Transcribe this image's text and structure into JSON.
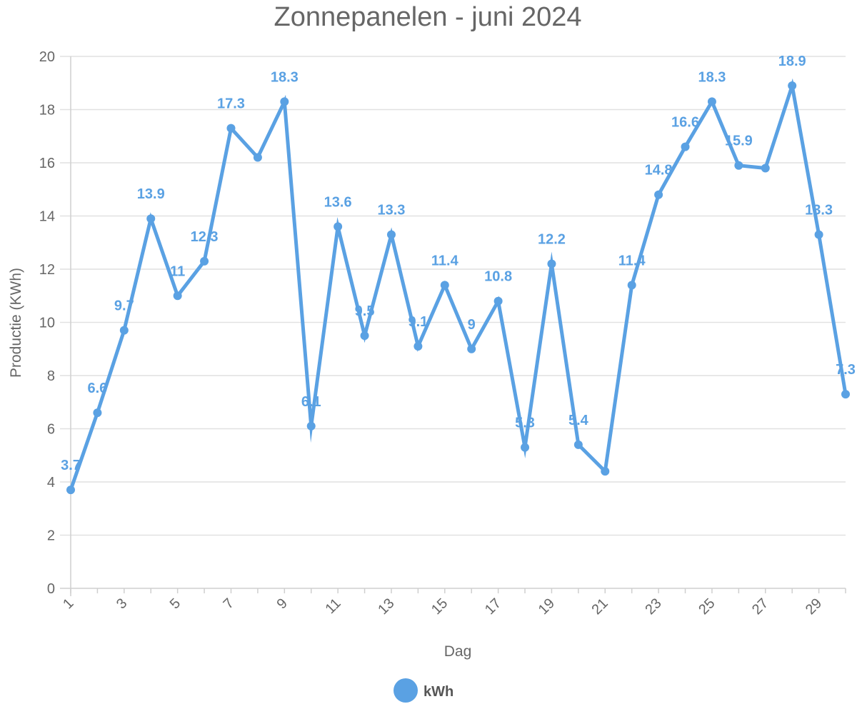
{
  "chart_data": {
    "type": "line",
    "title": "Zonnepanelen - juni 2024",
    "xlabel": "Dag",
    "ylabel": "Productie (KWh)",
    "ylim": [
      0,
      20
    ],
    "yticks": [
      0,
      2,
      4,
      6,
      8,
      10,
      12,
      14,
      16,
      18,
      20
    ],
    "x": [
      1,
      2,
      3,
      4,
      5,
      6,
      7,
      8,
      9,
      10,
      11,
      12,
      13,
      14,
      15,
      16,
      17,
      18,
      19,
      20,
      21,
      22,
      23,
      24,
      25,
      26,
      27,
      28,
      29,
      30
    ],
    "xticks": [
      "1",
      "3",
      "5",
      "7",
      "9",
      "11",
      "13",
      "15",
      "17",
      "19",
      "21",
      "23",
      "25",
      "27",
      "29"
    ],
    "grid": true,
    "legend_position": "bottom",
    "series": [
      {
        "name": "kWh",
        "color": "#5aa1e3",
        "values": [
          3.7,
          6.6,
          9.7,
          13.9,
          11,
          12.3,
          17.3,
          16.2,
          18.3,
          6.1,
          13.6,
          9.5,
          13.3,
          9.1,
          11.4,
          9,
          10.8,
          5.3,
          12.2,
          5.4,
          4.4,
          11.4,
          14.8,
          16.6,
          18.3,
          15.9,
          15.8,
          18.9,
          13.3,
          7.3
        ],
        "data_labels": [
          "3.7",
          "6.6",
          "9.7",
          "13.9",
          "11",
          "12.3",
          "17.3",
          "",
          "18.3",
          "6.1",
          "13.6",
          "9.5",
          "13.3",
          "9.1",
          "11.4",
          "9",
          "10.8",
          "5.3",
          "12.2",
          "5.4",
          "",
          "11.4",
          "14.8",
          "16.6",
          "18.3",
          "15.9",
          "",
          "18.9",
          "13.3",
          "7.3"
        ]
      }
    ]
  }
}
